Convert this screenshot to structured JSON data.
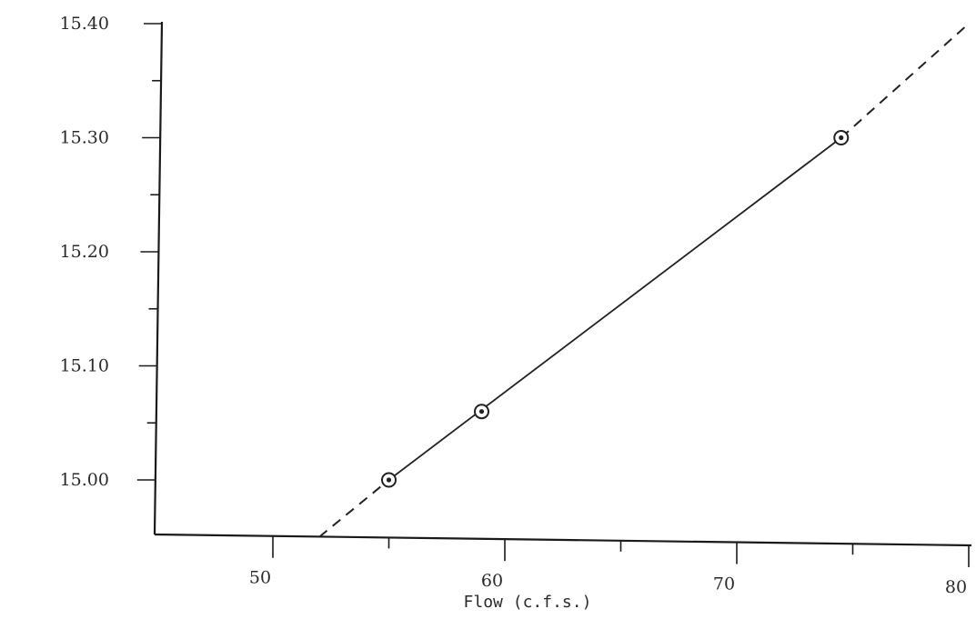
{
  "chart_data": {
    "type": "line",
    "title": "",
    "xlabel": "Flow (c.f.s.)",
    "ylabel": "",
    "xlim": [
      45,
      80
    ],
    "ylim": [
      15.0,
      15.4
    ],
    "x_ticks": [
      50,
      60,
      70,
      80
    ],
    "x_tick_labels": [
      "50",
      "60",
      "70",
      "80"
    ],
    "y_ticks": [
      15.0,
      15.1,
      15.2,
      15.3,
      15.4
    ],
    "y_tick_labels": [
      "15.00",
      "15.10",
      "15.20",
      "15.30",
      "15.40"
    ],
    "grid": false,
    "series": [
      {
        "points": [
          {
            "x": 55.0,
            "y": 15.0
          },
          {
            "x": 59.0,
            "y": 15.06
          },
          {
            "x": 74.5,
            "y": 15.3
          }
        ],
        "fit_line": {
          "solid_from_x": 55.0,
          "solid_to_x": 74.5,
          "dashed_extension": [
            [
              52.0,
              14.95
            ],
            [
              80.0,
              15.4
            ]
          ]
        }
      }
    ]
  }
}
